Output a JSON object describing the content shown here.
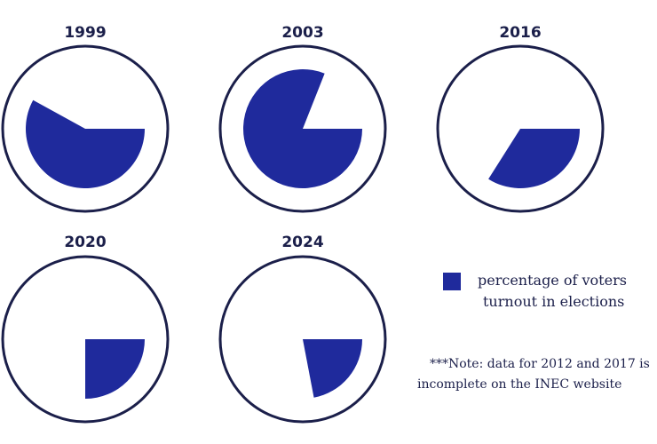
{
  "chart_data": {
    "type": "pie",
    "title": "",
    "colors": {
      "slice": "#1f2a9c",
      "ring": "#1b1f4a",
      "text": "#1b1f4a"
    },
    "charts": [
      {
        "year": "1999",
        "value": 0.58
      },
      {
        "year": "2003",
        "value": 0.81
      },
      {
        "year": "2016",
        "value": 0.34
      },
      {
        "year": "2020",
        "value": 0.25
      },
      {
        "year": "2024",
        "value": 0.22
      }
    ],
    "legend": {
      "line1": "percentage of voters",
      "line2": "turnout in elections"
    },
    "note": {
      "line1": "***Note: data for 2012 and 2017 is",
      "line2": "incomplete on the INEC  website"
    }
  }
}
